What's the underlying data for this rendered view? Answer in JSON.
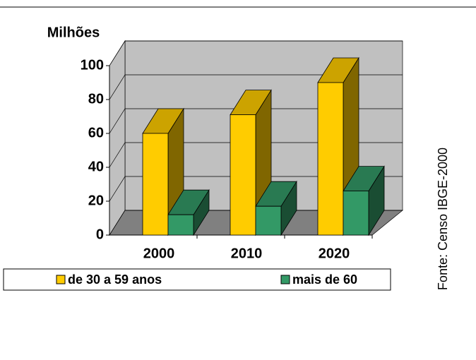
{
  "chart_data": {
    "type": "bar3d",
    "ylabel": "Milhões",
    "categories": [
      "2000",
      "2010",
      "2020"
    ],
    "series": [
      {
        "name": "de 30 a 59 anos",
        "color": "#ffcc00",
        "values": [
          60,
          71,
          90
        ]
      },
      {
        "name": "mais de 60",
        "color": "#339966",
        "values": [
          12,
          17,
          26
        ]
      }
    ],
    "ylim": [
      0,
      100
    ],
    "yticks": [
      0,
      20,
      40,
      60,
      80,
      100
    ],
    "grid": true,
    "legend": "bottom",
    "source": "Fonte: Censo IBGE-2000"
  }
}
